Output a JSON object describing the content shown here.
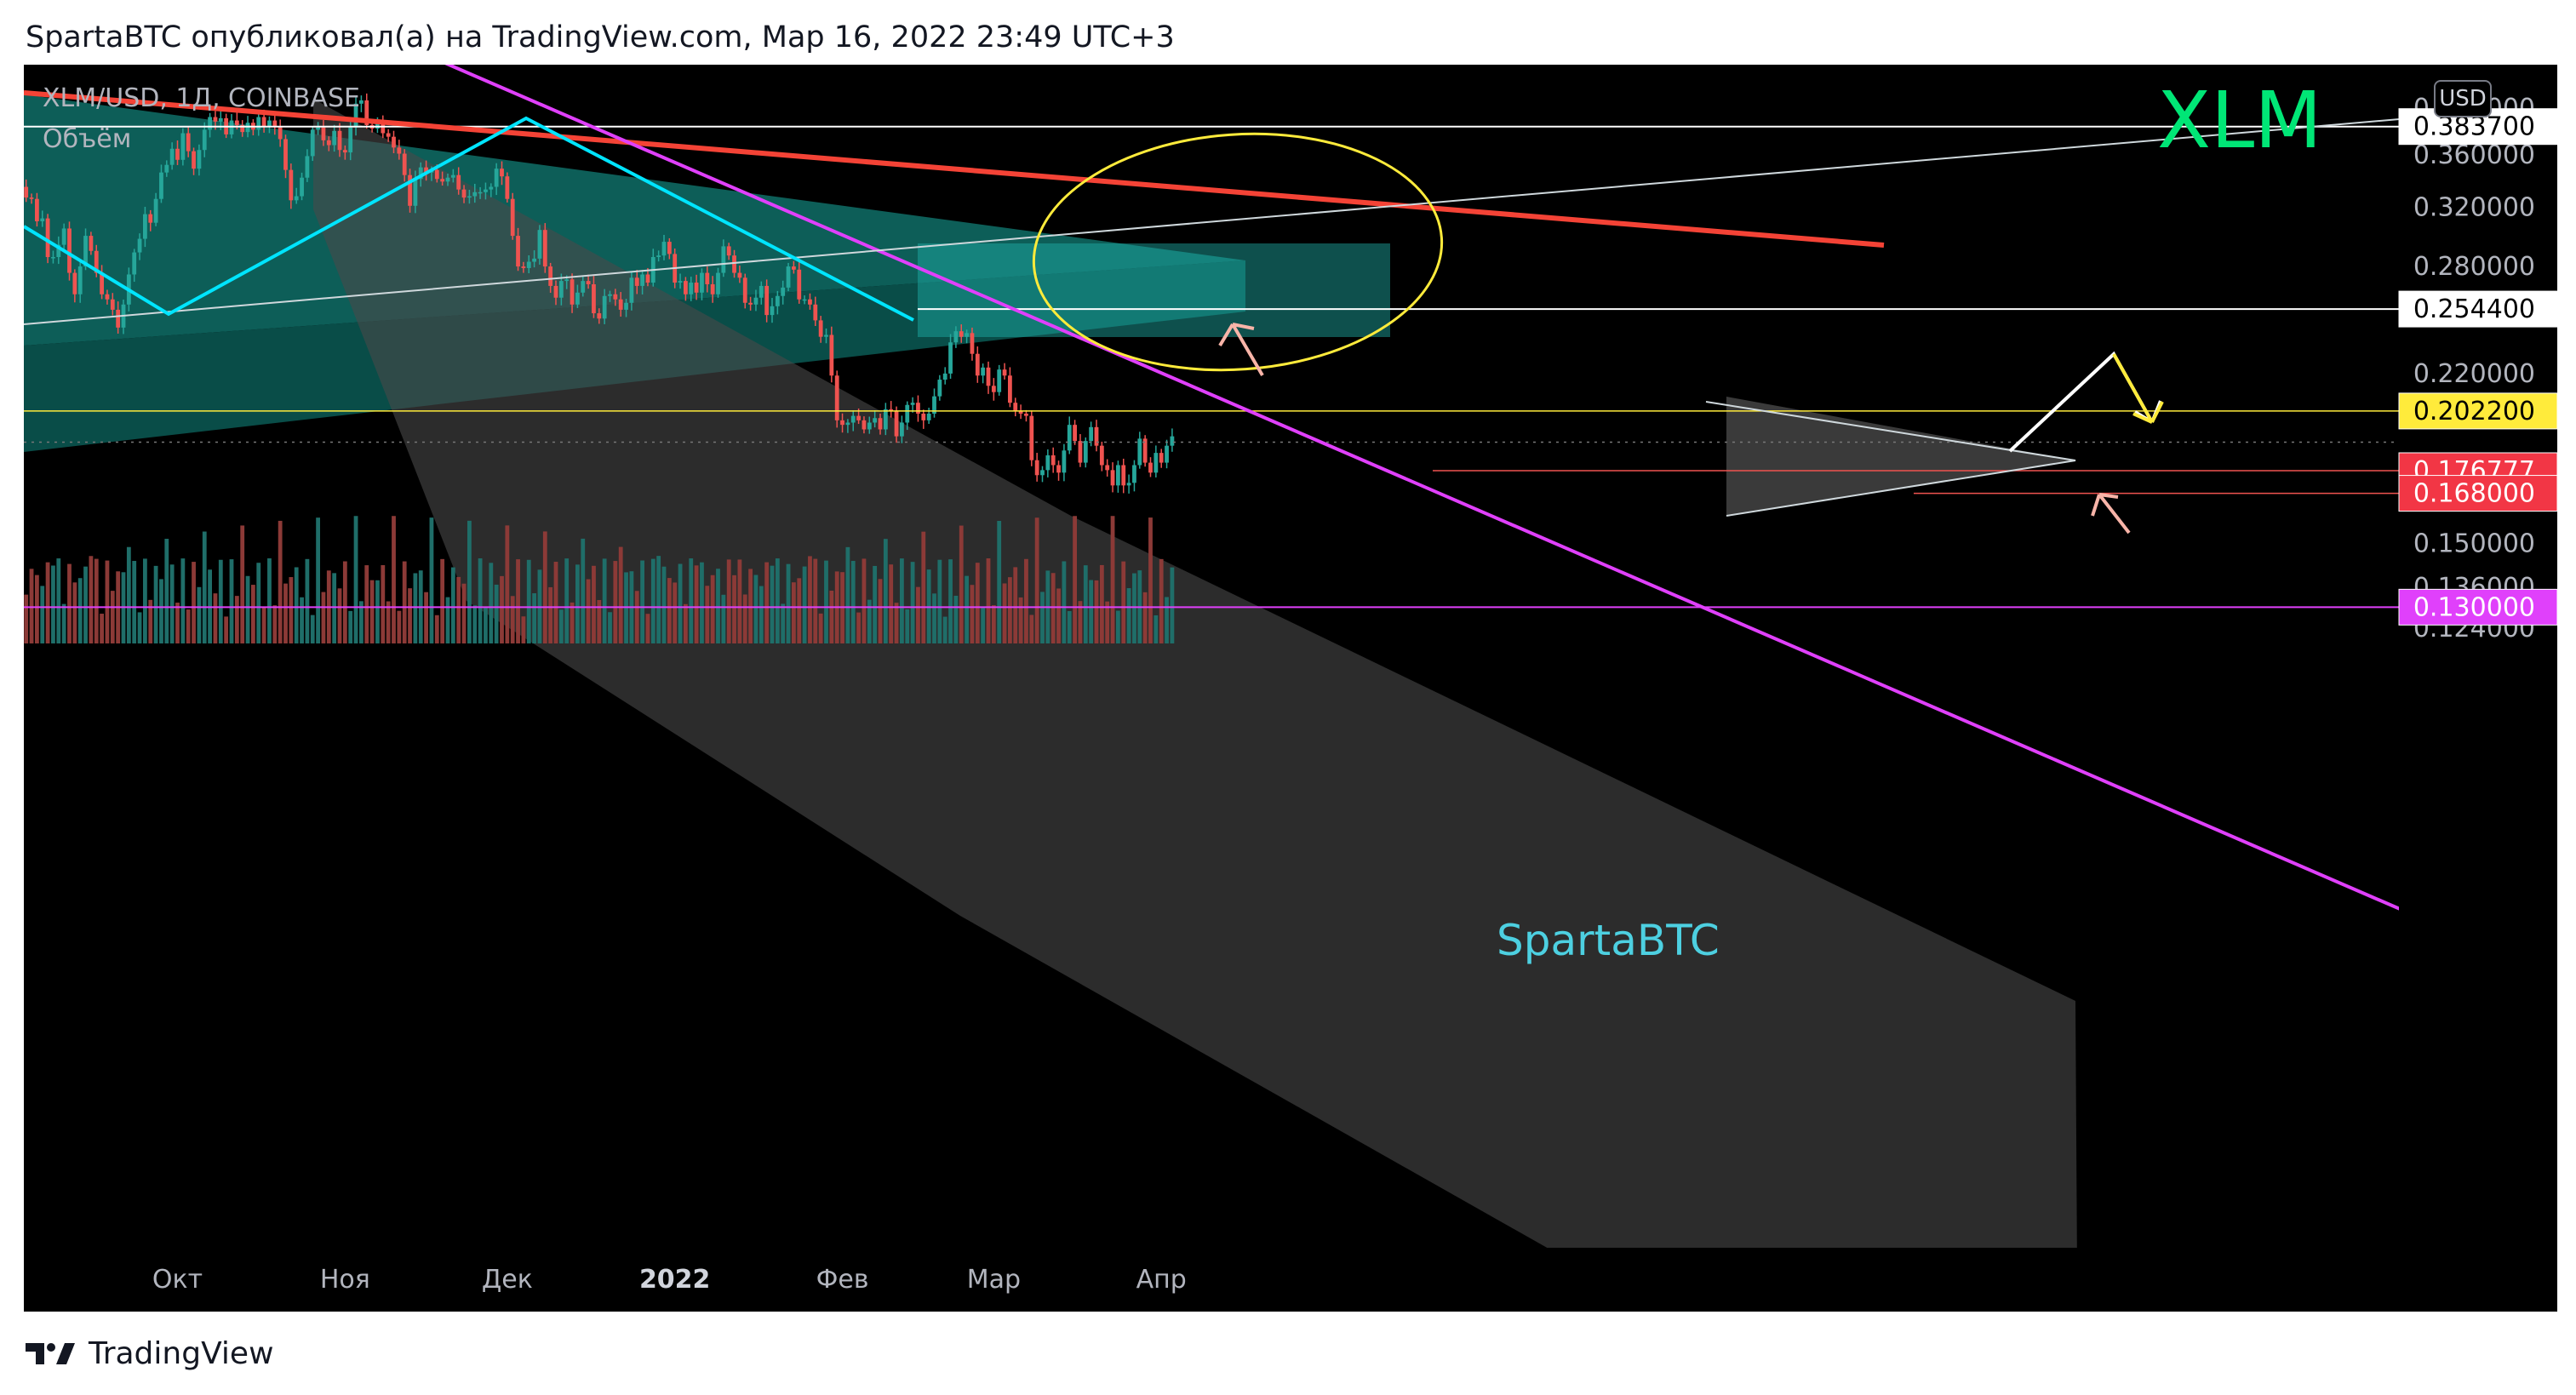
{
  "header": {
    "text": "SpartaBTC опубликовал(а) на TradingView.com, Мар 16, 2022 23:49 UTC+3"
  },
  "legend": {
    "symbol": "XLM/USD, 1Д, COINBASE",
    "volume_label": "Объём",
    "watermark": "XLM",
    "author_tag": "SpartaBTC",
    "currency_button": "USD"
  },
  "footer": {
    "brand": "TradingView"
  },
  "colors": {
    "background": "#000000",
    "candle_up": "#26a69a",
    "candle_down": "#ef5350",
    "volume_up": "#1f6e69",
    "volume_down": "#8c3a37",
    "resistance_line": "#e040fb",
    "red_trendline": "#f44336",
    "cyan_pattern": "#00e5ff",
    "yellow": "#ffeb3b",
    "watermark": "#00e676",
    "author_tag": "#4dd0e1"
  },
  "chart_data": {
    "type": "candlestick",
    "symbol": "XLM/USD",
    "timeframe": "1Д",
    "exchange": "COINBASE",
    "y_scale": "log",
    "ylim": [
      0.116,
      0.43
    ],
    "x_tick_labels": [
      "Окт",
      "Ноя",
      "Дек",
      "2022",
      "Фев",
      "Мар",
      "Апр"
    ],
    "y_tick_labels": [
      0.4,
      0.36,
      0.32,
      0.28,
      0.22,
      0.15,
      0.136,
      0.124
    ],
    "price_labels": [
      {
        "text": "0.383700",
        "value": 0.3837,
        "style": "white"
      },
      {
        "text": "0.254400",
        "value": 0.2544,
        "style": "white"
      },
      {
        "text": "0.202200",
        "value": 0.2022,
        "style": "yellow"
      },
      {
        "text": "0.176777",
        "value": 0.176777,
        "style": "red"
      },
      {
        "text": "0.168000",
        "value": 0.168,
        "style": "red"
      },
      {
        "text": "0.130000",
        "value": 0.13,
        "style": "magenta"
      }
    ],
    "candles": {
      "start_date": "2021-09-01",
      "end_date": "2022-03-16",
      "closes": [
        0.361,
        0.335,
        0.327,
        0.326,
        0.31,
        0.312,
        0.286,
        0.286,
        0.294,
        0.305,
        0.276,
        0.263,
        0.28,
        0.3,
        0.29,
        0.276,
        0.263,
        0.26,
        0.254,
        0.244,
        0.257,
        0.275,
        0.289,
        0.298,
        0.315,
        0.309,
        0.326,
        0.346,
        0.352,
        0.365,
        0.356,
        0.378,
        0.363,
        0.349,
        0.364,
        0.381,
        0.392,
        0.388,
        0.391,
        0.377,
        0.389,
        0.385,
        0.379,
        0.387,
        0.381,
        0.392,
        0.384,
        0.389,
        0.383,
        0.373,
        0.348,
        0.325,
        0.328,
        0.342,
        0.359,
        0.381,
        0.383,
        0.372,
        0.368,
        0.38,
        0.364,
        0.362,
        0.383,
        0.404,
        0.407,
        0.385,
        0.382,
        0.387,
        0.378,
        0.375,
        0.366,
        0.361,
        0.344,
        0.321,
        0.341,
        0.35,
        0.346,
        0.348,
        0.341,
        0.339,
        0.342,
        0.344,
        0.333,
        0.327,
        0.328,
        0.331,
        0.331,
        0.333,
        0.335,
        0.349,
        0.343,
        0.326,
        0.3,
        0.28,
        0.279,
        0.283,
        0.285,
        0.304,
        0.28,
        0.268,
        0.261,
        0.271,
        0.272,
        0.257,
        0.264,
        0.271,
        0.269,
        0.252,
        0.249,
        0.262,
        0.263,
        0.26,
        0.254,
        0.258,
        0.273,
        0.268,
        0.275,
        0.27,
        0.286,
        0.287,
        0.296,
        0.288,
        0.27,
        0.271,
        0.263,
        0.27,
        0.264,
        0.276,
        0.269,
        0.263,
        0.276,
        0.293,
        0.287,
        0.276,
        0.273,
        0.258,
        0.257,
        0.261,
        0.268,
        0.251,
        0.256,
        0.262,
        0.267,
        0.28,
        0.278,
        0.26,
        0.26,
        0.257,
        0.248,
        0.239,
        0.24,
        0.219,
        0.198,
        0.196,
        0.197,
        0.2,
        0.198,
        0.194,
        0.197,
        0.199,
        0.194,
        0.203,
        0.202,
        0.191,
        0.197,
        0.205,
        0.206,
        0.201,
        0.198,
        0.201,
        0.209,
        0.217,
        0.22,
        0.236,
        0.242,
        0.239,
        0.241,
        0.23,
        0.219,
        0.223,
        0.214,
        0.211,
        0.222,
        0.219,
        0.206,
        0.202,
        0.201,
        0.2,
        0.181,
        0.175,
        0.177,
        0.183,
        0.179,
        0.176,
        0.185,
        0.196,
        0.189,
        0.18,
        0.189,
        0.195,
        0.187,
        0.179,
        0.177,
        0.171,
        0.179,
        0.171,
        0.172,
        0.179,
        0.19,
        0.18,
        0.176,
        0.184,
        0.18,
        0.187,
        0.191
      ]
    },
    "volume_color_pattern": "matches candle direction (up = green, down = red)"
  }
}
